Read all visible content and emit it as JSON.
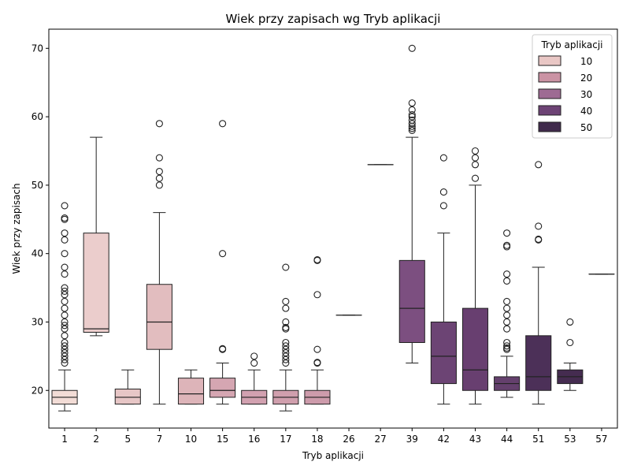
{
  "chart_data": {
    "type": "box",
    "title": "Wiek przy zapisach wg Tryb aplikacji",
    "xlabel": "Tryb aplikacji",
    "ylabel": "Wiek przy zapisach",
    "ylim": [
      14.5,
      72.8
    ],
    "yticks": [
      20,
      30,
      40,
      50,
      60,
      70
    ],
    "grid": false,
    "legend": {
      "title": "Tryb aplikacji",
      "position": "top-right",
      "entries": [
        {
          "label": "10",
          "color": "#e9c7c5"
        },
        {
          "label": "20",
          "color": "#cb93a4"
        },
        {
          "label": "30",
          "color": "#9e6b93"
        },
        {
          "label": "40",
          "color": "#6d4375"
        },
        {
          "label": "50",
          "color": "#402a4c"
        }
      ]
    },
    "categories": [
      "1",
      "2",
      "5",
      "7",
      "10",
      "15",
      "16",
      "17",
      "18",
      "26",
      "27",
      "39",
      "42",
      "43",
      "44",
      "51",
      "53",
      "57"
    ],
    "boxes": [
      {
        "category": "1",
        "color": "#f2dcd6",
        "whisker_low": 17,
        "q1": 18,
        "median": 19,
        "q3": 20,
        "whisker_high": 23,
        "outliers": [
          24,
          24.5,
          25,
          25.5,
          26,
          26.5,
          27,
          28,
          29,
          29.5,
          30,
          31,
          32,
          33,
          34,
          34.5,
          35,
          37,
          38,
          40,
          42,
          43,
          45,
          45.2,
          47
        ]
      },
      {
        "category": "2",
        "color": "#ebcdcc",
        "whisker_low": 28,
        "q1": 28.5,
        "median": 29,
        "q3": 43,
        "whisker_high": 57,
        "outliers": []
      },
      {
        "category": "5",
        "color": "#e7c6c6",
        "whisker_low": 18,
        "q1": 18,
        "median": 19,
        "q3": 20.2,
        "whisker_high": 23,
        "outliers": []
      },
      {
        "category": "7",
        "color": "#e2bdbf",
        "whisker_low": 18,
        "q1": 26,
        "median": 30,
        "q3": 35.5,
        "whisker_high": 46,
        "outliers": [
          50,
          51,
          52,
          54,
          59
        ]
      },
      {
        "category": "10",
        "color": "#ddb4b9",
        "whisker_low": 18,
        "q1": 18,
        "median": 19.5,
        "q3": 21.8,
        "whisker_high": 23,
        "outliers": []
      },
      {
        "category": "15",
        "color": "#d5a6b2",
        "whisker_low": 18,
        "q1": 19,
        "median": 20,
        "q3": 21.8,
        "whisker_high": 24,
        "outliers": [
          26,
          26.1,
          40,
          59
        ]
      },
      {
        "category": "16",
        "color": "#d2a1b0",
        "whisker_low": 18,
        "q1": 18,
        "median": 19,
        "q3": 20,
        "whisker_high": 23,
        "outliers": [
          24,
          25
        ]
      },
      {
        "category": "17",
        "color": "#d09fad",
        "whisker_low": 17,
        "q1": 18,
        "median": 19,
        "q3": 20,
        "whisker_high": 23,
        "outliers": [
          24,
          24.5,
          25,
          25.5,
          26,
          26.5,
          27,
          29,
          29.2,
          30,
          32,
          33,
          38
        ]
      },
      {
        "category": "18",
        "color": "#cd9bab",
        "whisker_low": 18,
        "q1": 18,
        "median": 19,
        "q3": 20,
        "whisker_high": 23,
        "outliers": [
          24,
          24.1,
          26,
          34,
          39,
          39.1
        ]
      },
      {
        "category": "26",
        "color": "#bc88a0",
        "whisker_low": 31,
        "q1": 31,
        "median": 31,
        "q3": 31,
        "whisker_high": 31,
        "outliers": []
      },
      {
        "category": "27",
        "color": "#b8849e",
        "whisker_low": 53,
        "q1": 53,
        "median": 53,
        "q3": 53,
        "whisker_high": 53,
        "outliers": []
      },
      {
        "category": "39",
        "color": "#7c4f80",
        "whisker_low": 24,
        "q1": 27,
        "median": 32,
        "q3": 39,
        "whisker_high": 57,
        "outliers": [
          58,
          58.3,
          58.6,
          59,
          59.5,
          60,
          60.3,
          61,
          62,
          70
        ]
      },
      {
        "category": "42",
        "color": "#6c4474",
        "whisker_low": 18,
        "q1": 21,
        "median": 25,
        "q3": 30,
        "whisker_high": 43,
        "outliers": [
          47,
          49,
          54
        ]
      },
      {
        "category": "43",
        "color": "#683f70",
        "whisker_low": 18,
        "q1": 20,
        "median": 23,
        "q3": 32,
        "whisker_high": 50,
        "outliers": [
          51,
          53,
          54,
          55
        ]
      },
      {
        "category": "44",
        "color": "#64406d",
        "whisker_low": 19,
        "q1": 20,
        "median": 21,
        "q3": 22,
        "whisker_high": 25,
        "outliers": [
          26,
          26.2,
          26.5,
          27,
          29,
          30,
          31,
          32,
          33,
          36,
          37,
          41,
          41.2,
          43
        ]
      },
      {
        "category": "51",
        "color": "#4c3058",
        "whisker_low": 18,
        "q1": 20,
        "median": 22,
        "q3": 28,
        "whisker_high": 38,
        "outliers": [
          42,
          42.1,
          44,
          53
        ]
      },
      {
        "category": "53",
        "color": "#452c50",
        "whisker_low": 20,
        "q1": 21,
        "median": 22,
        "q3": 23,
        "whisker_high": 24,
        "outliers": [
          27,
          30
        ]
      },
      {
        "category": "57",
        "color": "#3f2a4a",
        "whisker_low": 37,
        "q1": 37,
        "median": 37,
        "q3": 37,
        "whisker_high": 37,
        "outliers": []
      }
    ]
  }
}
